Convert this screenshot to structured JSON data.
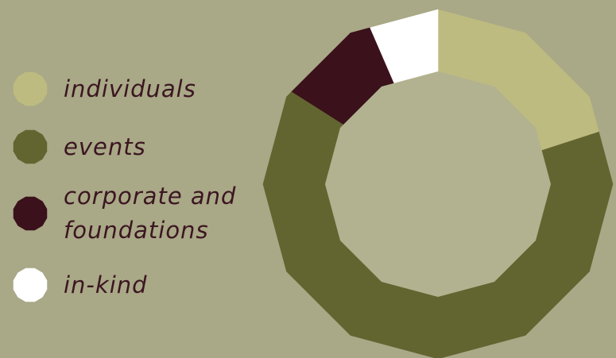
{
  "chart_data": {
    "type": "pie",
    "style": "donut",
    "legend_position": "left",
    "categories": [
      "individuals",
      "events",
      "corporate and\nfoundations",
      "in-kind"
    ],
    "values": [
      20,
      64,
      9.5,
      6.5
    ],
    "colors": [
      "#bdbb80",
      "#636531",
      "#3b111b",
      "#ffffff"
    ],
    "center_color": "#b2b290"
  },
  "legend": [
    {
      "label": "individuals",
      "color": "#bdbb80",
      "icon": "dodecagon-swatch"
    },
    {
      "label": "events",
      "color": "#636531",
      "icon": "dodecagon-swatch"
    },
    {
      "label": "corporate and\nfoundations",
      "color": "#3b111b",
      "icon": "dodecagon-swatch"
    },
    {
      "label": "in-kind",
      "color": "#ffffff",
      "icon": "dodecagon-swatch"
    }
  ]
}
